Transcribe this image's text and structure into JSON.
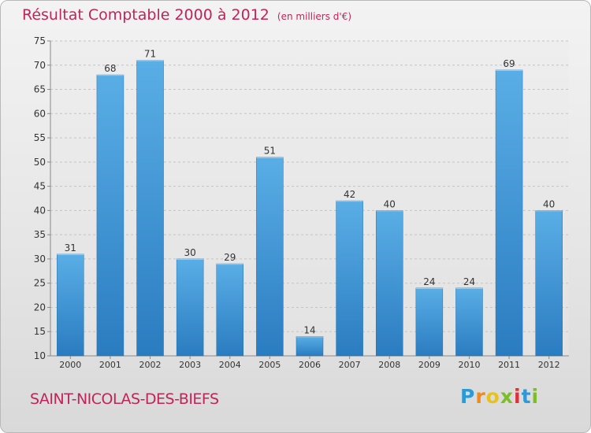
{
  "header": {
    "title": "Résultat Comptable 2000 à 2012",
    "subtitle": "(en milliers d'€)"
  },
  "footer": {
    "commune": "SAINT-NICOLAS-DES-BIEFS",
    "logo_letters": [
      "P",
      "r",
      "o",
      "x",
      "i",
      "t",
      "i"
    ],
    "logo_colors": [
      "#2a9bd6",
      "#f08a1c",
      "#e8c21a",
      "#7dbd2a",
      "#e0303a",
      "#2a9bd6",
      "#7dbd2a"
    ]
  },
  "chart_data": {
    "type": "bar",
    "title": "Résultat Comptable 2000 à 2012",
    "subtitle": "(en milliers d'€)",
    "categories": [
      "2000",
      "2001",
      "2002",
      "2003",
      "2004",
      "2005",
      "2006",
      "2007",
      "2008",
      "2009",
      "2010",
      "2011",
      "2012"
    ],
    "values": [
      31,
      68,
      71,
      30,
      29,
      51,
      14,
      42,
      40,
      24,
      24,
      69,
      40
    ],
    "ylim": [
      10,
      75
    ],
    "yticks": [
      10,
      15,
      20,
      25,
      30,
      35,
      40,
      45,
      50,
      55,
      60,
      65,
      70,
      75
    ],
    "grid": true,
    "bar_color": "#3a8fd6"
  }
}
